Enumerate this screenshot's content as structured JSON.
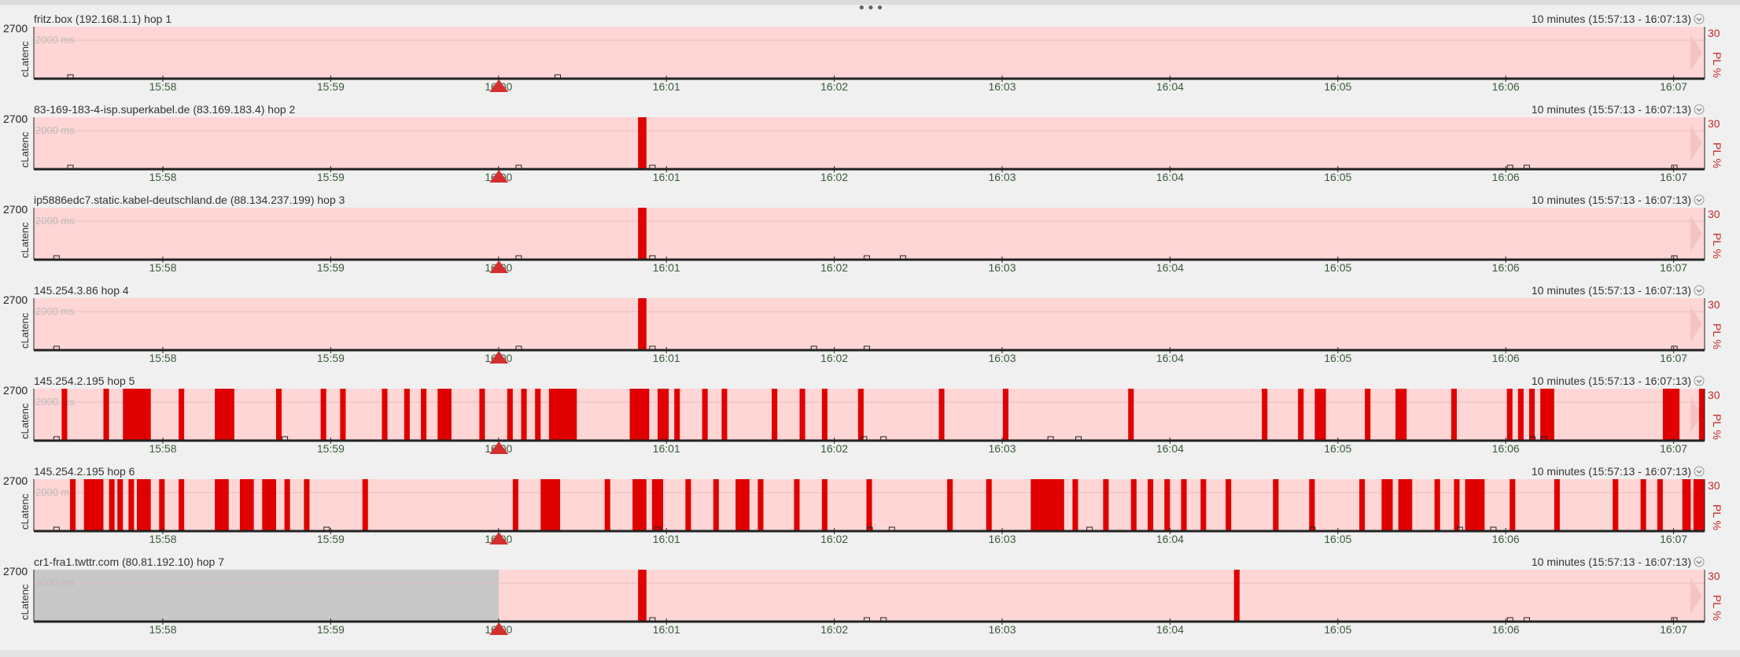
{
  "ui": {
    "colors": {
      "plot_bg": "#ffd6d6",
      "loss": "#e00000",
      "axis": "#222222",
      "marker": "#d32f2f",
      "grid": "#e8bcbc",
      "no_data": "#c8c8c8",
      "pl_text": "#c62828"
    },
    "y_tick": "2700",
    "y_axis_label": "cLatenc",
    "ghost_label": "2000 ms",
    "pl_tick": "30",
    "pl_axis_label": "PL %",
    "time_range": "10 minutes (15:57:13 - 16:07:13)",
    "collapse_icon": "chevron-down-icon"
  },
  "chart_data": [
    {
      "type": "bar",
      "title": "fritz.box (192.168.1.1) hop 1",
      "x_ticks": [
        "15:58",
        "15:59",
        "16:00",
        "16:01",
        "16:02",
        "16:03",
        "16:04",
        "16:05",
        "16:06",
        "16:07"
      ],
      "x_range_s": [
        0,
        600
      ],
      "y_max_ms": 2700,
      "pl_max": 30,
      "marker_s": 167,
      "no_data_until_s": null,
      "loss": [],
      "latency_blips_s": [
        13,
        188
      ]
    },
    {
      "type": "bar",
      "title": "83-169-183-4-isp.superkabel.de (83.169.183.4) hop 2",
      "x_ticks": [
        "15:58",
        "15:59",
        "16:00",
        "16:01",
        "16:02",
        "16:03",
        "16:04",
        "16:05",
        "16:06",
        "16:07"
      ],
      "x_range_s": [
        0,
        600
      ],
      "y_max_ms": 2700,
      "pl_max": 30,
      "marker_s": 167,
      "no_data_until_s": null,
      "loss": [
        [
          217,
          220
        ]
      ],
      "latency_blips_s": [
        13,
        174,
        222,
        530,
        536,
        589
      ]
    },
    {
      "type": "bar",
      "title": "ip5886edc7.static.kabel-deutschland.de (88.134.237.199) hop 3",
      "x_ticks": [
        "15:58",
        "15:59",
        "16:00",
        "16:01",
        "16:02",
        "16:03",
        "16:04",
        "16:05",
        "16:06",
        "16:07"
      ],
      "x_range_s": [
        0,
        600
      ],
      "y_max_ms": 2700,
      "pl_max": 30,
      "marker_s": 167,
      "no_data_until_s": null,
      "loss": [
        [
          217,
          220
        ]
      ],
      "latency_blips_s": [
        8,
        174,
        222,
        299,
        312,
        589
      ]
    },
    {
      "type": "bar",
      "title": "145.254.3.86 hop 4",
      "x_ticks": [
        "15:58",
        "15:59",
        "16:00",
        "16:01",
        "16:02",
        "16:03",
        "16:04",
        "16:05",
        "16:06",
        "16:07"
      ],
      "x_range_s": [
        0,
        600
      ],
      "y_max_ms": 2700,
      "pl_max": 30,
      "marker_s": 167,
      "no_data_until_s": null,
      "loss": [
        [
          217,
          220
        ]
      ],
      "latency_blips_s": [
        8,
        174,
        222,
        280,
        299,
        589
      ]
    },
    {
      "type": "bar",
      "title": "145.254.2.195 hop 5",
      "x_ticks": [
        "15:58",
        "15:59",
        "16:00",
        "16:01",
        "16:02",
        "16:03",
        "16:04",
        "16:05",
        "16:06",
        "16:07"
      ],
      "x_range_s": [
        0,
        600
      ],
      "y_max_ms": 2700,
      "pl_max": 30,
      "marker_s": 167,
      "no_data_until_s": null,
      "loss": [
        [
          10,
          12
        ],
        [
          25,
          27
        ],
        [
          32,
          42
        ],
        [
          52,
          54
        ],
        [
          65,
          72
        ],
        [
          87,
          89
        ],
        [
          103,
          105
        ],
        [
          110,
          112
        ],
        [
          125,
          127
        ],
        [
          133,
          135
        ],
        [
          139,
          141
        ],
        [
          145,
          150
        ],
        [
          160,
          162
        ],
        [
          170,
          172
        ],
        [
          175,
          177
        ],
        [
          180,
          182
        ],
        [
          185,
          195
        ],
        [
          214,
          221
        ],
        [
          224,
          228
        ],
        [
          230,
          232
        ],
        [
          240,
          242
        ],
        [
          247,
          249
        ],
        [
          265,
          267
        ],
        [
          275,
          277
        ],
        [
          283,
          285
        ],
        [
          296,
          298
        ],
        [
          325,
          327
        ],
        [
          348,
          350
        ],
        [
          393,
          395
        ],
        [
          441,
          443
        ],
        [
          454,
          456
        ],
        [
          460,
          464
        ],
        [
          478,
          480
        ],
        [
          489,
          493
        ],
        [
          509,
          511
        ],
        [
          529,
          531
        ],
        [
          533,
          535
        ],
        [
          537,
          539
        ],
        [
          541,
          546
        ],
        [
          598,
          600
        ],
        [
          616,
          618
        ],
        [
          585,
          591
        ]
      ],
      "latency_blips_s": [
        8,
        90,
        298,
        305,
        365,
        375,
        538,
        542
      ]
    },
    {
      "type": "bar",
      "title": "145.254.2.195 hop 6",
      "x_ticks": [
        "15:58",
        "15:59",
        "16:00",
        "16:01",
        "16:02",
        "16:03",
        "16:04",
        "16:05",
        "16:06",
        "16:07"
      ],
      "x_range_s": [
        0,
        600
      ],
      "y_max_ms": 2700,
      "pl_max": 30,
      "marker_s": 167,
      "no_data_until_s": null,
      "loss": [
        [
          13,
          15
        ],
        [
          18,
          25
        ],
        [
          27,
          29
        ],
        [
          30,
          32
        ],
        [
          34,
          36
        ],
        [
          37,
          42
        ],
        [
          45,
          47
        ],
        [
          52,
          54
        ],
        [
          65,
          70
        ],
        [
          74,
          79
        ],
        [
          82,
          87
        ],
        [
          90,
          92
        ],
        [
          97,
          99
        ],
        [
          118,
          120
        ],
        [
          172,
          174
        ],
        [
          182,
          189
        ],
        [
          205,
          207
        ],
        [
          215,
          220
        ],
        [
          222,
          226
        ],
        [
          234,
          236
        ],
        [
          244,
          246
        ],
        [
          252,
          257
        ],
        [
          260,
          262
        ],
        [
          273,
          275
        ],
        [
          283,
          285
        ],
        [
          299,
          301
        ],
        [
          328,
          330
        ],
        [
          342,
          344
        ],
        [
          358,
          370
        ],
        [
          373,
          375
        ],
        [
          384,
          386
        ],
        [
          394,
          396
        ],
        [
          400,
          402
        ],
        [
          406,
          408
        ],
        [
          412,
          414
        ],
        [
          419,
          421
        ],
        [
          428,
          430
        ],
        [
          445,
          447
        ],
        [
          458,
          460
        ],
        [
          476,
          478
        ],
        [
          484,
          488
        ],
        [
          490,
          495
        ],
        [
          503,
          505
        ],
        [
          510,
          512
        ],
        [
          514,
          521
        ],
        [
          530,
          532
        ],
        [
          546,
          548
        ],
        [
          567,
          569
        ],
        [
          577,
          579
        ],
        [
          583,
          585
        ],
        [
          592,
          595
        ],
        [
          596,
          600
        ]
      ],
      "latency_blips_s": [
        8,
        105,
        224,
        300,
        308,
        379,
        459,
        512,
        524
      ]
    },
    {
      "type": "bar",
      "title": "cr1-fra1.twttr.com (80.81.192.10) hop 7",
      "x_ticks": [
        "15:58",
        "15:59",
        "16:00",
        "16:01",
        "16:02",
        "16:03",
        "16:04",
        "16:05",
        "16:06",
        "16:07"
      ],
      "x_range_s": [
        0,
        600
      ],
      "y_max_ms": 2700,
      "pl_max": 30,
      "marker_s": 167,
      "no_data_until_s": 167,
      "loss": [
        [
          217,
          220
        ],
        [
          431,
          433
        ]
      ],
      "latency_blips_s": [
        222,
        299,
        305,
        530,
        536,
        589
      ]
    }
  ]
}
